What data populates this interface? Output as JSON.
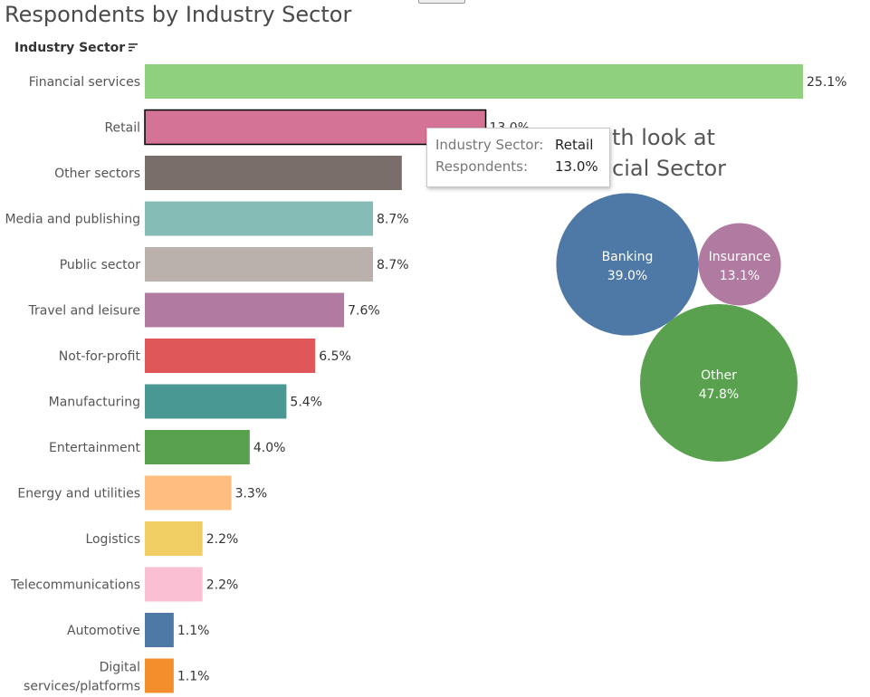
{
  "title": "Respondents by Industry Sector",
  "field_header": "Industry Sector",
  "tooltip": {
    "key1": "Industry Sector:",
    "val1": "Retail",
    "key2": "Respondents:",
    "val2": "13.0%"
  },
  "chart_data": [
    {
      "type": "bar",
      "orientation": "horizontal",
      "title": "Respondents by Industry Sector",
      "ylabel": "Industry Sector",
      "categories": [
        "Financial services",
        "Retail",
        "Other sectors",
        "Media and publishing",
        "Public sector",
        "Travel and leisure",
        "Not-for-profit",
        "Manufacturing",
        "Entertainment",
        "Energy and utilities",
        "Logistics",
        "Telecommunications",
        "Automotive",
        "Digital services/platforms"
      ],
      "values": [
        25.1,
        13.0,
        9.8,
        8.7,
        8.7,
        7.6,
        6.5,
        5.4,
        4.0,
        3.3,
        2.2,
        2.2,
        1.1,
        1.1
      ],
      "labels": [
        "25.1%",
        "13.0%",
        "",
        "8.7%",
        "8.7%",
        "7.6%",
        "6.5%",
        "5.4%",
        "4.0%",
        "3.3%",
        "2.2%",
        "2.2%",
        "1.1%",
        "1.1%"
      ],
      "colors": [
        "#8ed07d",
        "#d47396",
        "#7a6e6b",
        "#86bcb6",
        "#bab0ac",
        "#b07aa1",
        "#e05759",
        "#499894",
        "#59a14f",
        "#ffbe7d",
        "#f1ce63",
        "#fabfd2",
        "#4e79a7",
        "#f28e2b"
      ],
      "selected": "Retail",
      "xlim": [
        0,
        25.1
      ]
    },
    {
      "type": "bubble",
      "title_fragments": [
        "th look at",
        "cial Sector"
      ],
      "categories": [
        "Banking",
        "Insurance",
        "Other"
      ],
      "values": [
        39.0,
        13.1,
        47.8
      ],
      "labels": [
        "39.0%",
        "13.1%",
        "47.8%"
      ],
      "colors": [
        "#4e79a7",
        "#b07aa1",
        "#59a14f"
      ]
    }
  ]
}
